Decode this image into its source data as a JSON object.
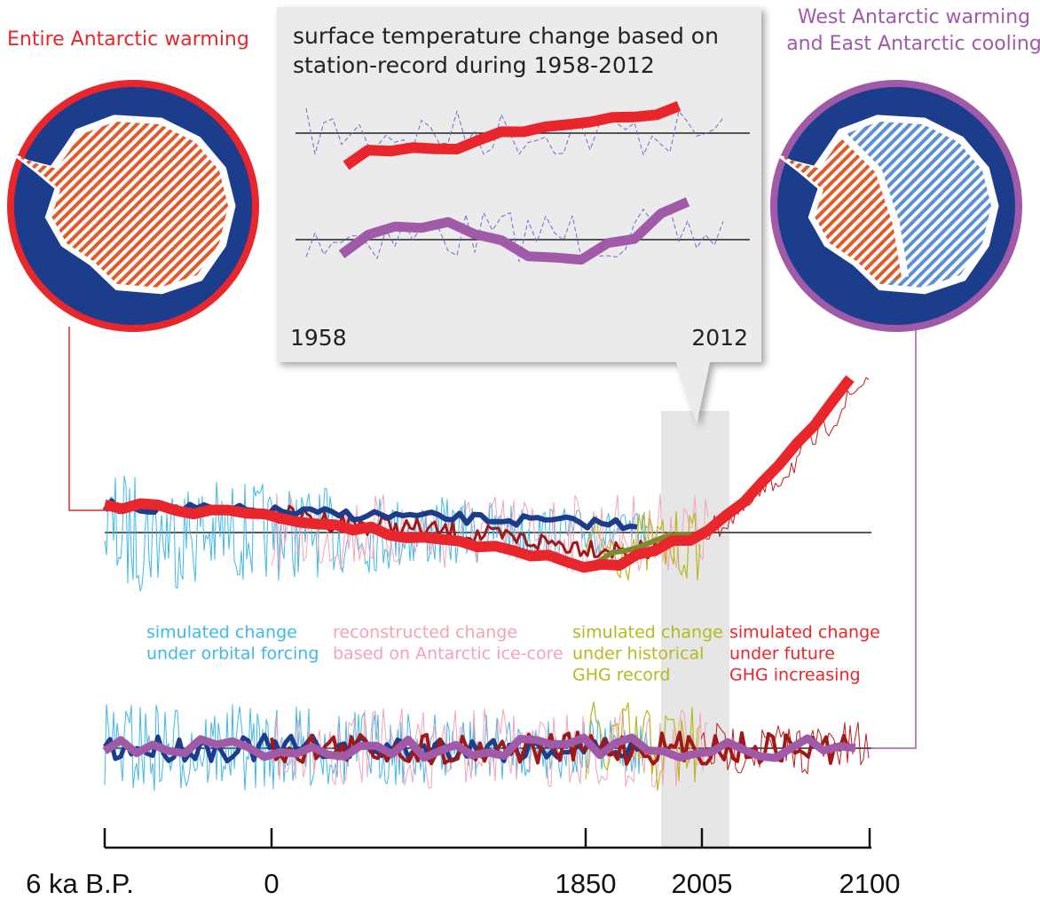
{
  "left_panel": {
    "label": "Entire Antarctic warming"
  },
  "right_panel": {
    "label": [
      "West Antarctic warming",
      "and East Antarctic cooling"
    ]
  },
  "inset": {
    "title": [
      "surface temperature change based on",
      "station-record during 1958-2012"
    ],
    "start": "1958",
    "end": "2012"
  },
  "legend": [
    {
      "color": "#3db8ec",
      "lines": [
        "simulated change",
        "under orbital forcing"
      ]
    },
    {
      "color": "#f4a3b4",
      "lines": [
        "reconstructed change",
        "based on Antarctic ice-core"
      ]
    },
    {
      "color": "#b5b81e",
      "lines": [
        "simulated change",
        "under historical",
        "GHG record"
      ]
    },
    {
      "color": "#e8262b",
      "lines": [
        "simulated change",
        "under future",
        "GHG increasing"
      ]
    }
  ],
  "timeline": {
    "ticks": [
      "6 ka B.P.",
      "0",
      "1850",
      "2005",
      "2100"
    ]
  }
}
